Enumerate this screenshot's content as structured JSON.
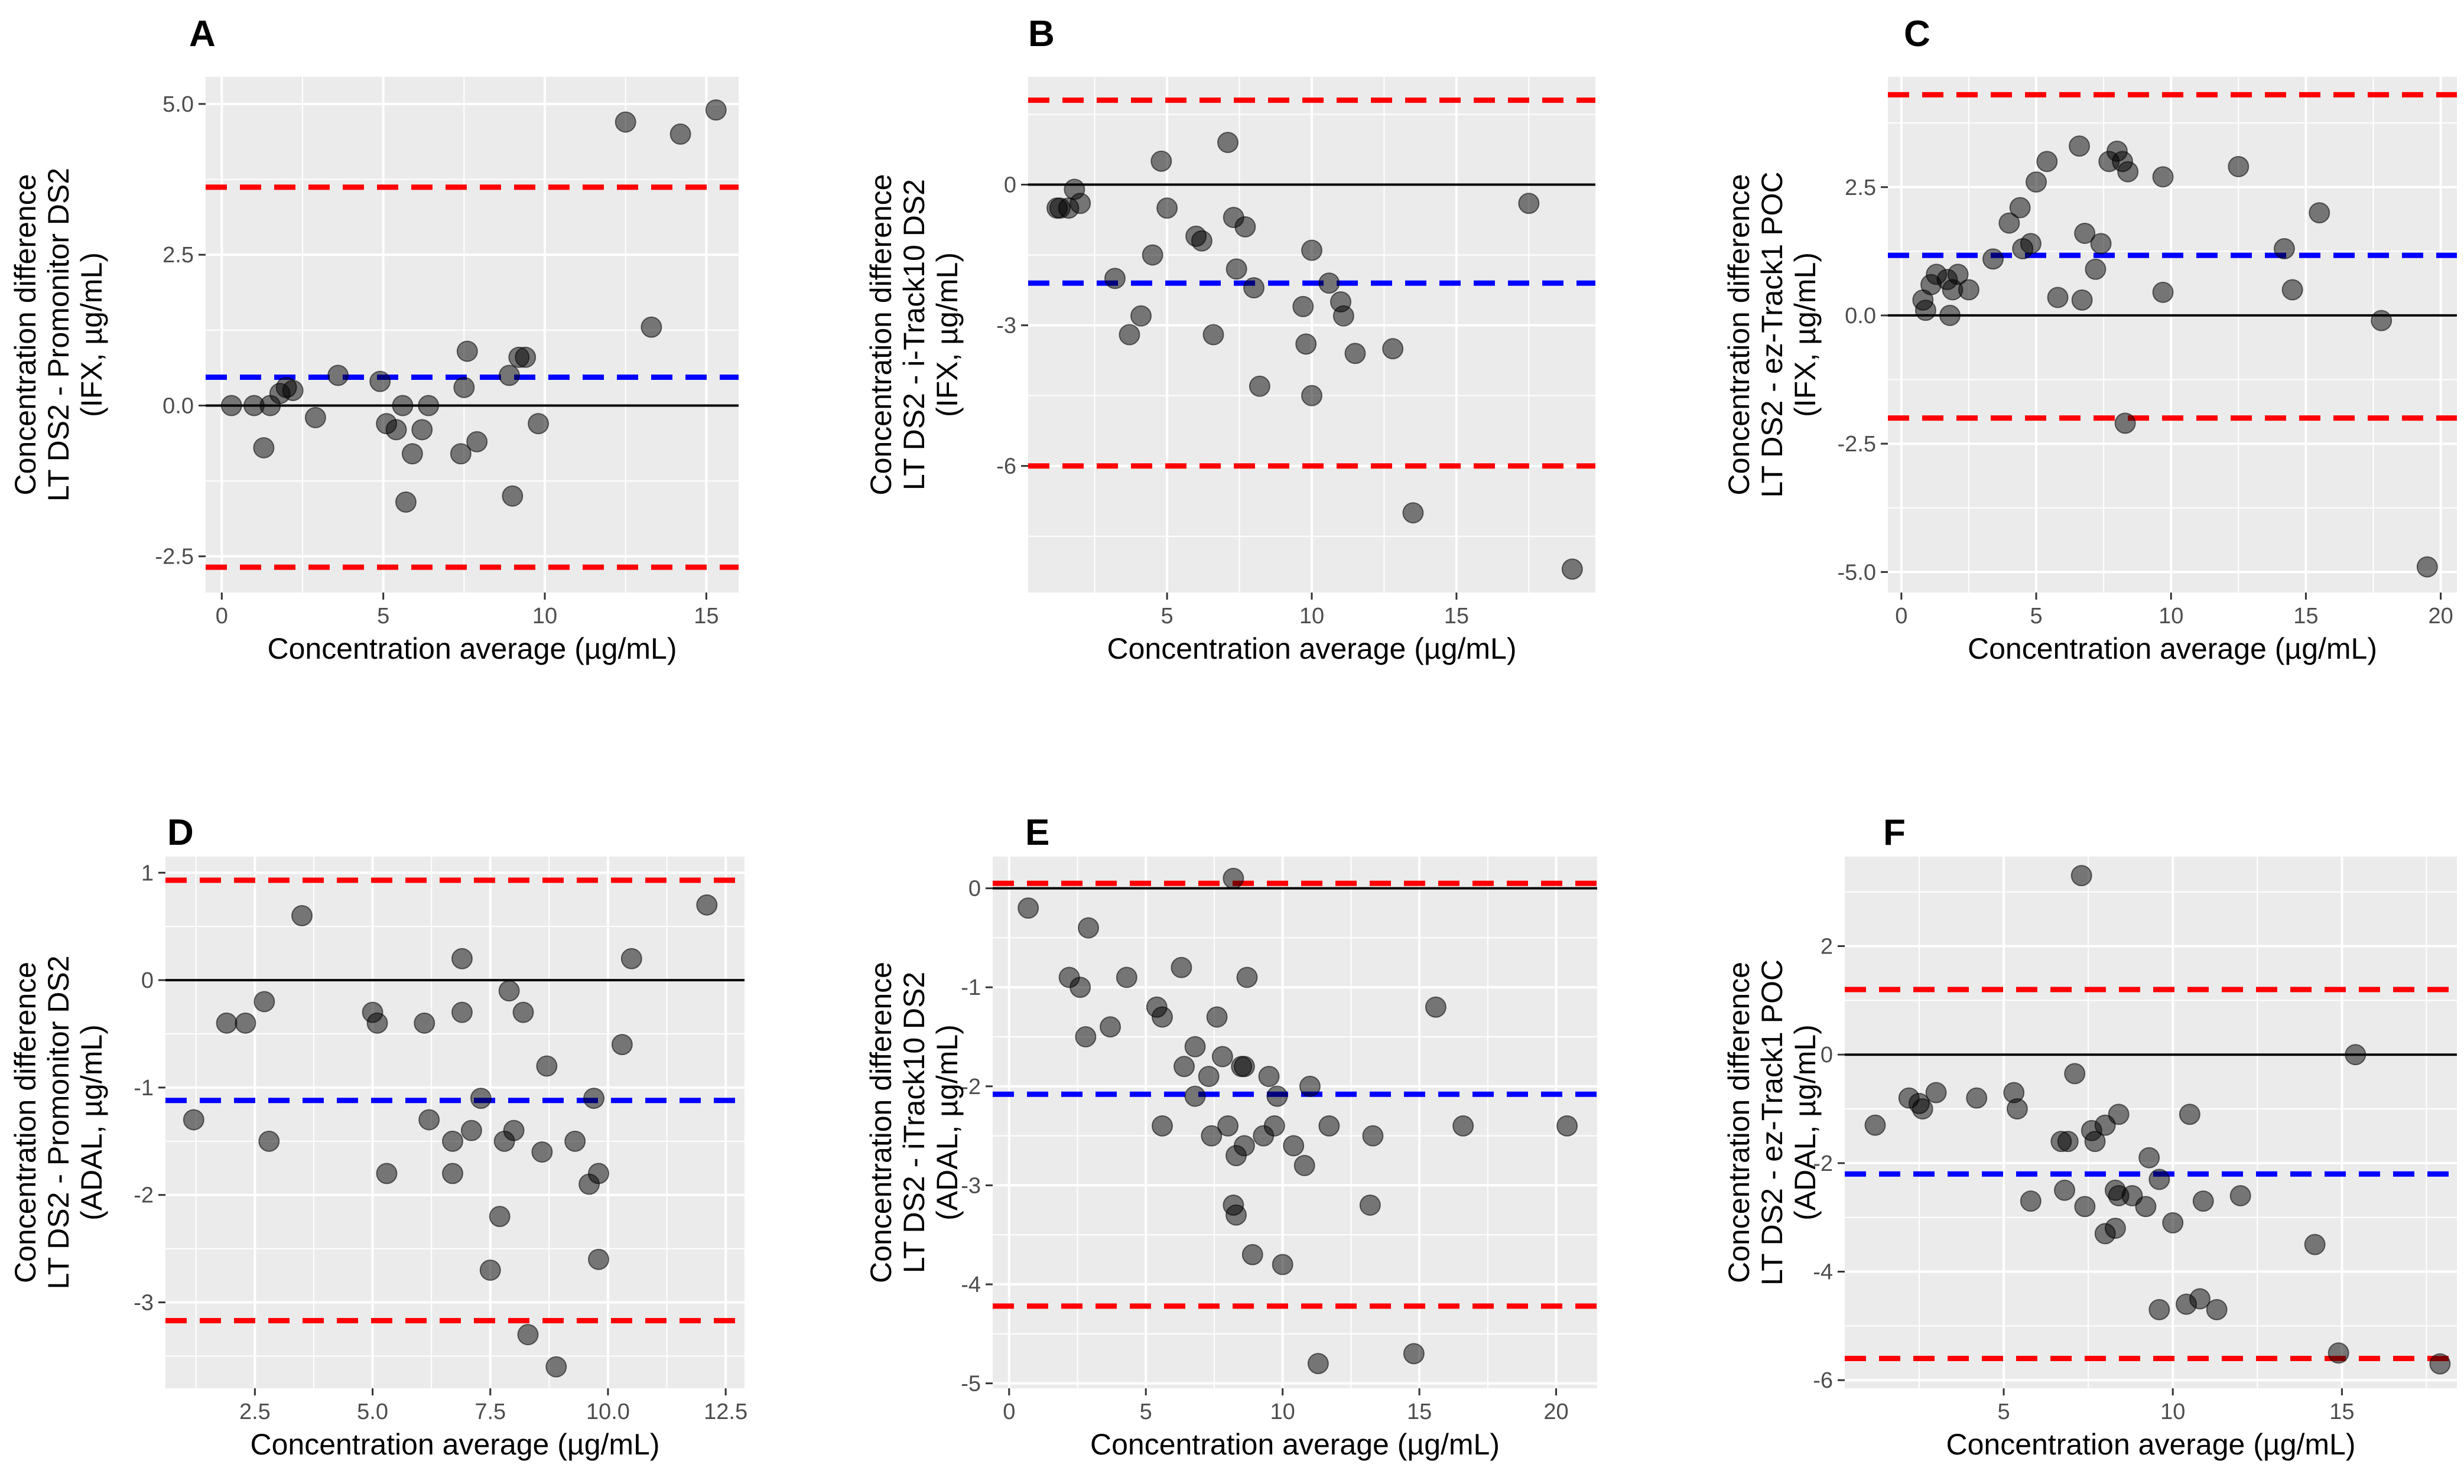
{
  "figure": {
    "colors": {
      "panel_bg": "#ebebeb",
      "grid": "#ffffff",
      "point_fill": "#000000",
      "mean_line": "#0000ff",
      "limit_line": "#ff0000",
      "zero_line": "#000000"
    }
  },
  "chart_data": [
    {
      "id": "A",
      "type": "scatter",
      "title": "A",
      "xlabel": "Concentration average (µg/mL)",
      "ylabel_lines": [
        "Concentration difference",
        "LT DS2 - Promonitor DS2",
        "(IFX, µg/mL)"
      ],
      "xlim": [
        -0.5,
        16
      ],
      "ylim": [
        -3.1,
        5.45
      ],
      "xticks": [
        0,
        5,
        10,
        15
      ],
      "xtick_labels": [
        "0",
        "5",
        "10",
        "15"
      ],
      "yticks": [
        -2.5,
        0,
        2.5,
        5
      ],
      "ytick_labels": [
        "-2.5",
        "0.0",
        "2.5",
        "5.0"
      ],
      "mean": 0.47,
      "upper_loa": 3.62,
      "lower_loa": -2.68,
      "points": [
        [
          0.3,
          0
        ],
        [
          1,
          0
        ],
        [
          1.3,
          -0.7
        ],
        [
          1.5,
          0
        ],
        [
          1.8,
          0.2
        ],
        [
          2,
          0.3
        ],
        [
          2.2,
          0.25
        ],
        [
          2.9,
          -0.2
        ],
        [
          3.6,
          0.5
        ],
        [
          4.9,
          0.4
        ],
        [
          5.1,
          -0.3
        ],
        [
          5.4,
          -0.4
        ],
        [
          5.6,
          0
        ],
        [
          5.7,
          -1.6
        ],
        [
          5.9,
          -0.8
        ],
        [
          6.2,
          -0.4
        ],
        [
          6.4,
          0
        ],
        [
          7.4,
          -0.8
        ],
        [
          7.5,
          0.3
        ],
        [
          7.6,
          0.9
        ],
        [
          7.9,
          -0.6
        ],
        [
          8.9,
          0.5
        ],
        [
          9,
          -1.5
        ],
        [
          9.2,
          0.8
        ],
        [
          9.4,
          0.8
        ],
        [
          9.8,
          -0.3
        ],
        [
          12.5,
          4.7
        ],
        [
          13.3,
          1.3
        ],
        [
          14.2,
          4.5
        ],
        [
          15.3,
          4.9
        ]
      ]
    },
    {
      "id": "B",
      "type": "scatter",
      "title": "B",
      "xlabel": "Concentration average (µg/mL)",
      "ylabel_lines": [
        "Concentration difference",
        "LT DS2 - i-Track10 DS2",
        "(IFX, µg/mL)"
      ],
      "xlim": [
        0.2,
        19.8
      ],
      "ylim": [
        -8.7,
        2.3
      ],
      "xticks": [
        5,
        10,
        15
      ],
      "xtick_labels": [
        "5",
        "10",
        "15"
      ],
      "yticks": [
        -6,
        -3,
        0
      ],
      "ytick_labels": [
        "-6",
        "-3",
        "0"
      ],
      "mean": -2.1,
      "upper_loa": 1.8,
      "lower_loa": -6.0,
      "points": [
        [
          1.2,
          -0.5
        ],
        [
          1.3,
          -0.5
        ],
        [
          1.6,
          -0.5
        ],
        [
          1.8,
          -0.1
        ],
        [
          2,
          -0.4
        ],
        [
          3.2,
          -2
        ],
        [
          3.7,
          -3.2
        ],
        [
          4.1,
          -2.8
        ],
        [
          4.5,
          -1.5
        ],
        [
          4.8,
          0.5
        ],
        [
          5,
          -0.5
        ],
        [
          6,
          -1.1
        ],
        [
          6.2,
          -1.2
        ],
        [
          6.6,
          -3.2
        ],
        [
          7.1,
          0.9
        ],
        [
          7.3,
          -0.7
        ],
        [
          7.4,
          -1.8
        ],
        [
          7.7,
          -0.9
        ],
        [
          8,
          -2.2
        ],
        [
          8.2,
          -4.3
        ],
        [
          9.7,
          -2.6
        ],
        [
          9.8,
          -3.4
        ],
        [
          10,
          -1.4
        ],
        [
          10,
          -4.5
        ],
        [
          10.6,
          -2.1
        ],
        [
          11,
          -2.5
        ],
        [
          11.1,
          -2.8
        ],
        [
          11.5,
          -3.6
        ],
        [
          12.8,
          -3.5
        ],
        [
          13.5,
          -7.0
        ],
        [
          17.5,
          -0.4
        ],
        [
          19,
          -8.2
        ]
      ]
    },
    {
      "id": "C",
      "type": "scatter",
      "title": "C",
      "xlabel": "Concentration average (µg/mL)",
      "ylabel_lines": [
        "Concentration difference",
        "LT DS2 - ez-Track1 POC",
        "(IFX, µg/mL)"
      ],
      "xlim": [
        -0.5,
        20.6
      ],
      "ylim": [
        -5.4,
        4.65
      ],
      "xticks": [
        0,
        5,
        10,
        15,
        20
      ],
      "xtick_labels": [
        "0",
        "5",
        "10",
        "15",
        "20"
      ],
      "yticks": [
        -5,
        -2.5,
        0,
        2.5
      ],
      "ytick_labels": [
        "-5.0",
        "-2.5",
        "0.0",
        "2.5"
      ],
      "mean": 1.17,
      "upper_loa": 4.3,
      "lower_loa": -2.0,
      "points": [
        [
          0.8,
          0.3
        ],
        [
          0.9,
          0.1
        ],
        [
          1.1,
          0.6
        ],
        [
          1.3,
          0.8
        ],
        [
          1.7,
          0.7
        ],
        [
          1.8,
          0
        ],
        [
          1.9,
          0.5
        ],
        [
          2.1,
          0.8
        ],
        [
          2.5,
          0.5
        ],
        [
          3.4,
          1.1
        ],
        [
          4,
          1.8
        ],
        [
          4.4,
          2.1
        ],
        [
          4.5,
          1.3
        ],
        [
          4.8,
          1.4
        ],
        [
          5,
          2.6
        ],
        [
          5.4,
          3.0
        ],
        [
          5.8,
          0.35
        ],
        [
          6.6,
          3.3
        ],
        [
          6.7,
          0.3
        ],
        [
          6.8,
          1.6
        ],
        [
          7.2,
          0.9
        ],
        [
          7.4,
          1.4
        ],
        [
          7.7,
          3.0
        ],
        [
          8,
          3.2
        ],
        [
          8.2,
          3.0
        ],
        [
          8.4,
          2.8
        ],
        [
          8.3,
          -2.1
        ],
        [
          9.7,
          2.7
        ],
        [
          9.7,
          0.45
        ],
        [
          12.5,
          2.9
        ],
        [
          14.2,
          1.3
        ],
        [
          14.5,
          0.5
        ],
        [
          15.5,
          2.0
        ],
        [
          17.8,
          -0.1
        ],
        [
          19.5,
          -4.9
        ]
      ]
    },
    {
      "id": "D",
      "type": "scatter",
      "title": "D",
      "xlabel": "Concentration average (µg/mL)",
      "ylabel_lines": [
        "Concentration difference",
        "LT DS2 - Promonitor DS2",
        "(ADAL, µg/mL)"
      ],
      "xlim": [
        0.6,
        12.9
      ],
      "ylim": [
        -3.8,
        1.15
      ],
      "xticks": [
        2.5,
        5,
        7.5,
        10,
        12.5
      ],
      "xtick_labels": [
        "2.5",
        "5.0",
        "7.5",
        "10.0",
        "12.5"
      ],
      "yticks": [
        -3,
        -2,
        -1,
        0,
        1
      ],
      "ytick_labels": [
        "-3",
        "-2",
        "-1",
        "0",
        "1"
      ],
      "mean": -1.12,
      "upper_loa": 0.93,
      "lower_loa": -3.17,
      "points": [
        [
          1.2,
          -1.3
        ],
        [
          1.9,
          -0.4
        ],
        [
          2.3,
          -0.4
        ],
        [
          2.7,
          -0.2
        ],
        [
          2.8,
          -1.5
        ],
        [
          3.5,
          0.6
        ],
        [
          5.0,
          -0.3
        ],
        [
          5.1,
          -0.4
        ],
        [
          5.3,
          -1.8
        ],
        [
          6.1,
          -0.4
        ],
        [
          6.2,
          -1.3
        ],
        [
          6.7,
          -1.8
        ],
        [
          6.7,
          -1.5
        ],
        [
          6.9,
          0.2
        ],
        [
          6.9,
          -0.3
        ],
        [
          7.1,
          -1.4
        ],
        [
          7.3,
          -1.1
        ],
        [
          7.5,
          -2.7
        ],
        [
          7.7,
          -2.2
        ],
        [
          7.8,
          -1.5
        ],
        [
          7.9,
          -0.1
        ],
        [
          8,
          -1.4
        ],
        [
          8.2,
          -0.3
        ],
        [
          8.3,
          -3.3
        ],
        [
          8.6,
          -1.6
        ],
        [
          8.7,
          -0.8
        ],
        [
          8.9,
          -3.6
        ],
        [
          9.3,
          -1.5
        ],
        [
          9.6,
          -1.9
        ],
        [
          9.7,
          -1.1
        ],
        [
          9.8,
          -2.6
        ],
        [
          9.8,
          -1.8
        ],
        [
          10.3,
          -0.6
        ],
        [
          10.5,
          0.2
        ],
        [
          12.1,
          0.7
        ]
      ]
    },
    {
      "id": "E",
      "type": "scatter",
      "title": "E",
      "xlabel": "Concentration average (µg/mL)",
      "ylabel_lines": [
        "Concentration difference",
        "LT DS2 - iTrack10 DS2",
        "(ADAL, µg/mL)"
      ],
      "xlim": [
        -0.6,
        21.5
      ],
      "ylim": [
        -5.05,
        0.32
      ],
      "xticks": [
        0,
        5,
        10,
        15,
        20
      ],
      "xtick_labels": [
        "0",
        "5",
        "10",
        "15",
        "20"
      ],
      "yticks": [
        -5,
        -4,
        -3,
        -2,
        -1,
        0
      ],
      "ytick_labels": [
        "-5",
        "-4",
        "-3",
        "-2",
        "-1",
        "0"
      ],
      "mean": -2.08,
      "upper_loa": 0.05,
      "lower_loa": -4.22,
      "points": [
        [
          0.7,
          -0.2
        ],
        [
          2.2,
          -0.9
        ],
        [
          2.6,
          -1.0
        ],
        [
          2.8,
          -1.5
        ],
        [
          2.9,
          -0.4
        ],
        [
          3.7,
          -1.4
        ],
        [
          4.3,
          -0.9
        ],
        [
          5.4,
          -1.2
        ],
        [
          5.6,
          -1.3
        ],
        [
          5.6,
          -2.4
        ],
        [
          6.3,
          -0.8
        ],
        [
          6.4,
          -1.8
        ],
        [
          6.8,
          -1.6
        ],
        [
          6.8,
          -2.1
        ],
        [
          7.3,
          -1.9
        ],
        [
          7.4,
          -2.5
        ],
        [
          7.6,
          -1.3
        ],
        [
          7.8,
          -1.7
        ],
        [
          8,
          -2.4
        ],
        [
          8.2,
          0.1
        ],
        [
          8.2,
          -3.2
        ],
        [
          8.3,
          -3.3
        ],
        [
          8.3,
          -2.7
        ],
        [
          8.5,
          -1.8
        ],
        [
          8.6,
          -1.8
        ],
        [
          8.6,
          -2.6
        ],
        [
          8.7,
          -0.9
        ],
        [
          8.9,
          -3.7
        ],
        [
          9.3,
          -2.5
        ],
        [
          9.5,
          -1.9
        ],
        [
          9.7,
          -2.4
        ],
        [
          9.8,
          -2.1
        ],
        [
          10,
          -3.8
        ],
        [
          10.4,
          -2.6
        ],
        [
          10.8,
          -2.8
        ],
        [
          11,
          -2.0
        ],
        [
          11.3,
          -4.8
        ],
        [
          11.7,
          -2.4
        ],
        [
          13.2,
          -3.2
        ],
        [
          13.3,
          -2.5
        ],
        [
          14.8,
          -4.7
        ],
        [
          15.6,
          -1.2
        ],
        [
          16.6,
          -2.4
        ],
        [
          20.4,
          -2.4
        ]
      ]
    },
    {
      "id": "F",
      "type": "scatter",
      "title": "F",
      "xlabel": "Concentration average (µg/mL)",
      "ylabel_lines": [
        "Concentration difference",
        "LT DS2 - ez-Track1 POC",
        "(ADAL, µg/mL)"
      ],
      "xlim": [
        0.3,
        18.4
      ],
      "ylim": [
        -6.15,
        3.65
      ],
      "xticks": [
        5,
        10,
        15
      ],
      "xtick_labels": [
        "5",
        "10",
        "15"
      ],
      "yticks": [
        -6,
        -4,
        -2,
        0,
        2
      ],
      "ytick_labels": [
        "-6",
        "-4",
        "-2",
        "0",
        "2"
      ],
      "mean": -2.2,
      "upper_loa": 1.2,
      "lower_loa": -5.6,
      "points": [
        [
          1.2,
          -1.3
        ],
        [
          2.2,
          -0.8
        ],
        [
          2.5,
          -0.9
        ],
        [
          2.6,
          -1.0
        ],
        [
          3.0,
          -0.7
        ],
        [
          4.2,
          -0.8
        ],
        [
          5.3,
          -0.7
        ],
        [
          5.4,
          -1.0
        ],
        [
          5.8,
          -2.7
        ],
        [
          6.7,
          -1.6
        ],
        [
          6.8,
          -2.5
        ],
        [
          6.9,
          -1.6
        ],
        [
          7.1,
          -0.35
        ],
        [
          7.3,
          3.3
        ],
        [
          7.4,
          -2.8
        ],
        [
          7.6,
          -1.4
        ],
        [
          7.7,
          -1.6
        ],
        [
          8.0,
          -3.3
        ],
        [
          8.0,
          -1.3
        ],
        [
          8.3,
          -2.5
        ],
        [
          8.3,
          -3.2
        ],
        [
          8.4,
          -1.1
        ],
        [
          8.4,
          -2.6
        ],
        [
          8.8,
          -2.6
        ],
        [
          9.2,
          -2.8
        ],
        [
          9.3,
          -1.9
        ],
        [
          9.6,
          -4.7
        ],
        [
          9.6,
          -2.3
        ],
        [
          10.0,
          -3.1
        ],
        [
          10.4,
          -4.6
        ],
        [
          10.5,
          -1.1
        ],
        [
          10.8,
          -4.5
        ],
        [
          10.9,
          -2.7
        ],
        [
          11.3,
          -4.7
        ],
        [
          12.0,
          -2.6
        ],
        [
          14.2,
          -3.5
        ],
        [
          14.9,
          -5.5
        ],
        [
          15.4,
          0.0
        ],
        [
          17.9,
          -5.7
        ]
      ]
    }
  ]
}
